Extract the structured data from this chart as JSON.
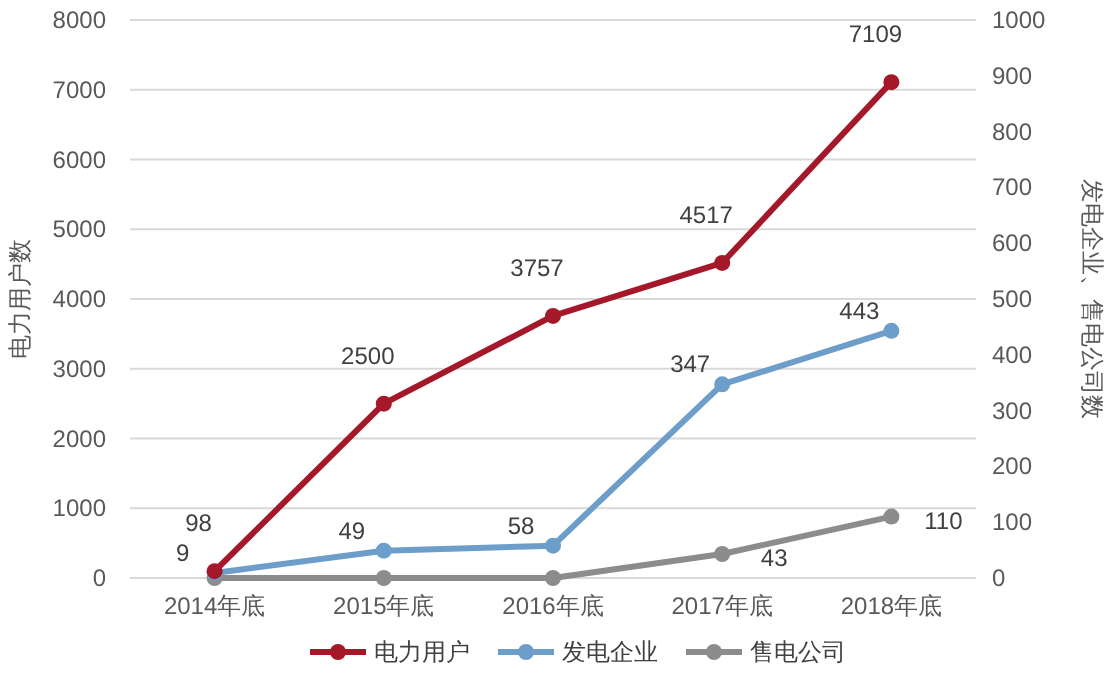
{
  "chart_data": {
    "type": "line",
    "ylabel": "电力用户数",
    "y2label": "发电企业、售电公司数",
    "categories": [
      "2014年底",
      "2015年底",
      "2016年底",
      "2017年底",
      "2018年底"
    ],
    "series": [
      {
        "name": "电力用户",
        "color": "#a5182a",
        "values": [
          98,
          2500,
          3757,
          4517,
          7109
        ],
        "value_labels": [
          "98",
          "2500",
          "3757",
          "4517",
          "7109"
        ]
      },
      {
        "name": "发电企业",
        "color": "#6d9ec9",
        "axis": "y2",
        "values": [
          9,
          49,
          58,
          347,
          443
        ],
        "value_labels": [
          "9",
          "49",
          "58",
          "347",
          "443"
        ]
      },
      {
        "name": "售电公司",
        "color": "#8c8c8c",
        "axis": "y2",
        "values": [
          0,
          0,
          0,
          43,
          110
        ],
        "value_labels": [
          null,
          null,
          null,
          "43",
          "110"
        ]
      }
    ],
    "ylim": [
      0,
      8000
    ],
    "yticks": [
      0,
      1000,
      2000,
      3000,
      4000,
      5000,
      6000,
      7000,
      8000
    ],
    "y2lim": [
      0,
      1000
    ],
    "y2ticks": [
      0,
      100,
      200,
      300,
      400,
      500,
      600,
      700,
      800,
      900,
      1000
    ],
    "grid": "y",
    "legend": "bottom",
    "marker": "circle",
    "line_style": "solid"
  }
}
